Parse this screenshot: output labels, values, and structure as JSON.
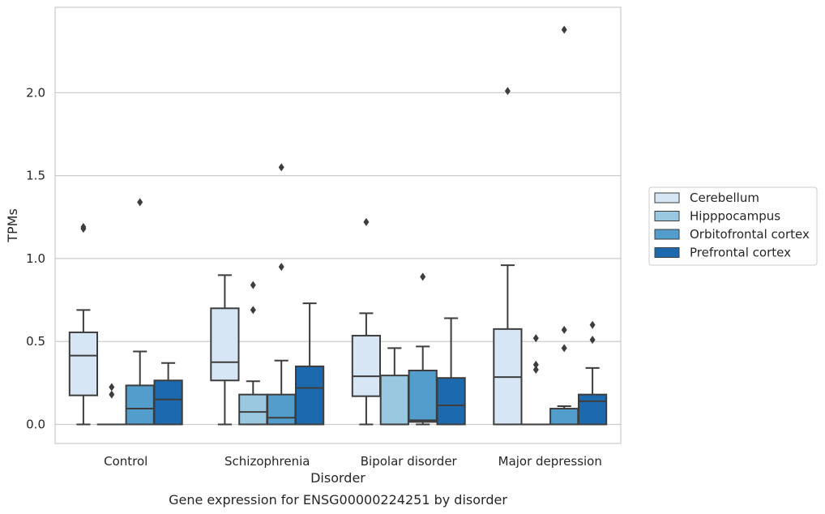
{
  "chart_data": {
    "type": "box",
    "title": "Gene expression for ENSG00000224251 by disorder",
    "xlabel": "Disorder",
    "ylabel": "TPMs",
    "ylim": [
      -0.115,
      2.515
    ],
    "yticks": [
      "0.0",
      "0.5",
      "1.0",
      "1.5",
      "2.0"
    ],
    "grid": "horizontal",
    "legend_placement": "right",
    "categories": [
      "Control",
      "Schizophrenia",
      "Bipolar disorder",
      "Major depression"
    ],
    "series": [
      {
        "name": "Cerebellum",
        "color": "#d6e6f4",
        "boxes": [
          {
            "whislo": 0.0,
            "q1": 0.175,
            "med": 0.415,
            "q3": 0.555,
            "whishi": 0.69,
            "fliers": [
              1.18,
              1.19
            ]
          },
          {
            "whislo": 0.0,
            "q1": 0.265,
            "med": 0.375,
            "q3": 0.7,
            "whishi": 0.9,
            "fliers": []
          },
          {
            "whislo": 0.0,
            "q1": 0.17,
            "med": 0.29,
            "q3": 0.535,
            "whishi": 0.67,
            "fliers": [
              1.22
            ]
          },
          {
            "whislo": 0.0,
            "q1": 0.0,
            "med": 0.285,
            "q3": 0.575,
            "whishi": 0.96,
            "fliers": [
              2.01
            ]
          }
        ]
      },
      {
        "name": "Hipppocampus",
        "color": "#9ac8e0",
        "boxes": [
          {
            "whislo": 0.0,
            "q1": 0.0,
            "med": 0.0,
            "q3": 0.0,
            "whishi": 0.0,
            "fliers": [
              0.18,
              0.225
            ]
          },
          {
            "whislo": 0.0,
            "q1": 0.0,
            "med": 0.075,
            "q3": 0.18,
            "whishi": 0.26,
            "fliers": [
              0.69,
              0.84
            ]
          },
          {
            "whislo": 0.0,
            "q1": 0.0,
            "med": 0.0,
            "q3": 0.295,
            "whishi": 0.46,
            "fliers": []
          },
          {
            "whislo": 0.0,
            "q1": 0.0,
            "med": 0.0,
            "q3": 0.0,
            "whishi": 0.0,
            "fliers": [
              0.33,
              0.36,
              0.52
            ]
          }
        ]
      },
      {
        "name": "Orbitofrontal cortex",
        "color": "#529dcc",
        "boxes": [
          {
            "whislo": 0.0,
            "q1": 0.0,
            "med": 0.095,
            "q3": 0.235,
            "whishi": 0.44,
            "fliers": [
              1.34
            ]
          },
          {
            "whislo": 0.0,
            "q1": 0.0,
            "med": 0.04,
            "q3": 0.18,
            "whishi": 0.385,
            "fliers": [
              0.95,
              1.55
            ]
          },
          {
            "whislo": 0.0,
            "q1": 0.015,
            "med": 0.025,
            "q3": 0.325,
            "whishi": 0.47,
            "fliers": [
              0.89
            ]
          },
          {
            "whislo": 0.0,
            "q1": 0.0,
            "med": 0.0,
            "q3": 0.095,
            "whishi": 0.11,
            "fliers": [
              0.46,
              0.57,
              2.38
            ]
          }
        ]
      },
      {
        "name": "Prefrontal cortex",
        "color": "#1c6aad",
        "boxes": [
          {
            "whislo": 0.0,
            "q1": 0.0,
            "med": 0.15,
            "q3": 0.265,
            "whishi": 0.37,
            "fliers": []
          },
          {
            "whislo": 0.0,
            "q1": 0.0,
            "med": 0.22,
            "q3": 0.35,
            "whishi": 0.73,
            "fliers": []
          },
          {
            "whislo": 0.0,
            "q1": 0.0,
            "med": 0.115,
            "q3": 0.28,
            "whishi": 0.64,
            "fliers": []
          },
          {
            "whislo": 0.0,
            "q1": 0.0,
            "med": 0.14,
            "q3": 0.18,
            "whishi": 0.34,
            "fliers": [
              0.51,
              0.6
            ]
          }
        ]
      }
    ]
  }
}
